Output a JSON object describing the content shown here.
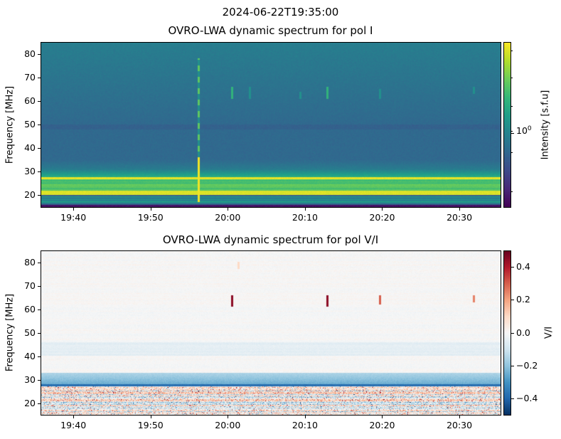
{
  "figure": {
    "suptitle": "2024-06-22T19:35:00"
  },
  "chart_data": [
    {
      "type": "heatmap",
      "title": "OVRO-LWA dynamic spectrum for pol I",
      "ylabel": "Frequency [MHz]",
      "xlabel": "",
      "xlim": [
        "19:35:45",
        "20:35:20"
      ],
      "ylim": [
        15,
        85
      ],
      "xticks": [
        "19:40",
        "19:50",
        "20:00",
        "20:10",
        "20:20",
        "20:30"
      ],
      "yticks": [
        20,
        30,
        40,
        50,
        60,
        70,
        80
      ],
      "colormap": "viridis",
      "colorbar": {
        "label": "Intensity [s.f.u]",
        "scale": "log",
        "ticks": [
          "10^0"
        ],
        "tick_text": "10",
        "tick_exp": "0"
      },
      "bands": [
        {
          "freq_range": [
            15,
            16.5
          ],
          "level": "low"
        },
        {
          "freq_range": [
            16.5,
            19.5
          ],
          "level": "moderate"
        },
        {
          "freq_range": [
            20,
            22
          ],
          "level": "saturated"
        },
        {
          "freq_range": [
            22,
            26.5
          ],
          "level": "high"
        },
        {
          "freq_range": [
            26.8,
            27.6
          ],
          "level": "saturated"
        },
        {
          "freq_range": [
            27.6,
            31
          ],
          "level": "elevated"
        },
        {
          "freq_range": [
            31,
            85
          ],
          "level": "background"
        }
      ],
      "bursts": [
        {
          "time": "19:56:10",
          "freq_range": [
            17,
            78
          ],
          "strength": "strong"
        },
        {
          "time": "20:00:30",
          "freq_range": [
            61,
            66
          ],
          "strength": "medium"
        },
        {
          "time": "20:02:50",
          "freq_range": [
            61,
            66
          ],
          "strength": "weak"
        },
        {
          "time": "20:09:20",
          "freq_range": [
            61,
            64
          ],
          "strength": "weak"
        },
        {
          "time": "20:12:50",
          "freq_range": [
            61,
            66
          ],
          "strength": "medium"
        },
        {
          "time": "20:19:40",
          "freq_range": [
            61,
            65
          ],
          "strength": "weak"
        },
        {
          "time": "20:31:50",
          "freq_range": [
            63,
            66
          ],
          "strength": "weak"
        }
      ]
    },
    {
      "type": "heatmap",
      "title": "OVRO-LWA dynamic spectrum for pol V/I",
      "ylabel": "Frequency [MHz]",
      "xlabel": "",
      "xlim": [
        "19:35:45",
        "20:35:20"
      ],
      "ylim": [
        15,
        85
      ],
      "xticks": [
        "19:40",
        "19:50",
        "20:00",
        "20:10",
        "20:20",
        "20:30"
      ],
      "yticks": [
        20,
        30,
        40,
        50,
        60,
        70,
        80
      ],
      "colormap": "RdBu_r",
      "colorbar": {
        "label": "V/I",
        "scale": "linear",
        "range": [
          -0.5,
          0.5
        ],
        "ticks": [
          "0.4",
          "0.2",
          "0.0",
          "−0.2",
          "−0.4"
        ],
        "tick_values": [
          0.4,
          0.2,
          0.0,
          -0.2,
          -0.4
        ]
      },
      "bands": [
        {
          "freq_range": [
            15,
            27
          ],
          "value": "mixed ±0.3"
        },
        {
          "freq_range": [
            27,
            28
          ],
          "value": -0.4
        },
        {
          "freq_range": [
            28,
            33
          ],
          "value": -0.15
        },
        {
          "freq_range": [
            40,
            46
          ],
          "value": -0.05
        },
        {
          "freq_range": [
            46,
            85
          ],
          "value": 0.0
        }
      ],
      "bursts": [
        {
          "time": "20:00:30",
          "freq_range": [
            61,
            66
          ],
          "value": 0.45
        },
        {
          "time": "20:12:50",
          "freq_range": [
            61,
            66
          ],
          "value": 0.45
        },
        {
          "time": "20:19:40",
          "freq_range": [
            62,
            66
          ],
          "value": 0.3
        },
        {
          "time": "20:31:50",
          "freq_range": [
            63,
            66
          ],
          "value": 0.25
        },
        {
          "time": "20:01:20",
          "freq_range": [
            77,
            80
          ],
          "value": 0.1
        }
      ]
    }
  ]
}
